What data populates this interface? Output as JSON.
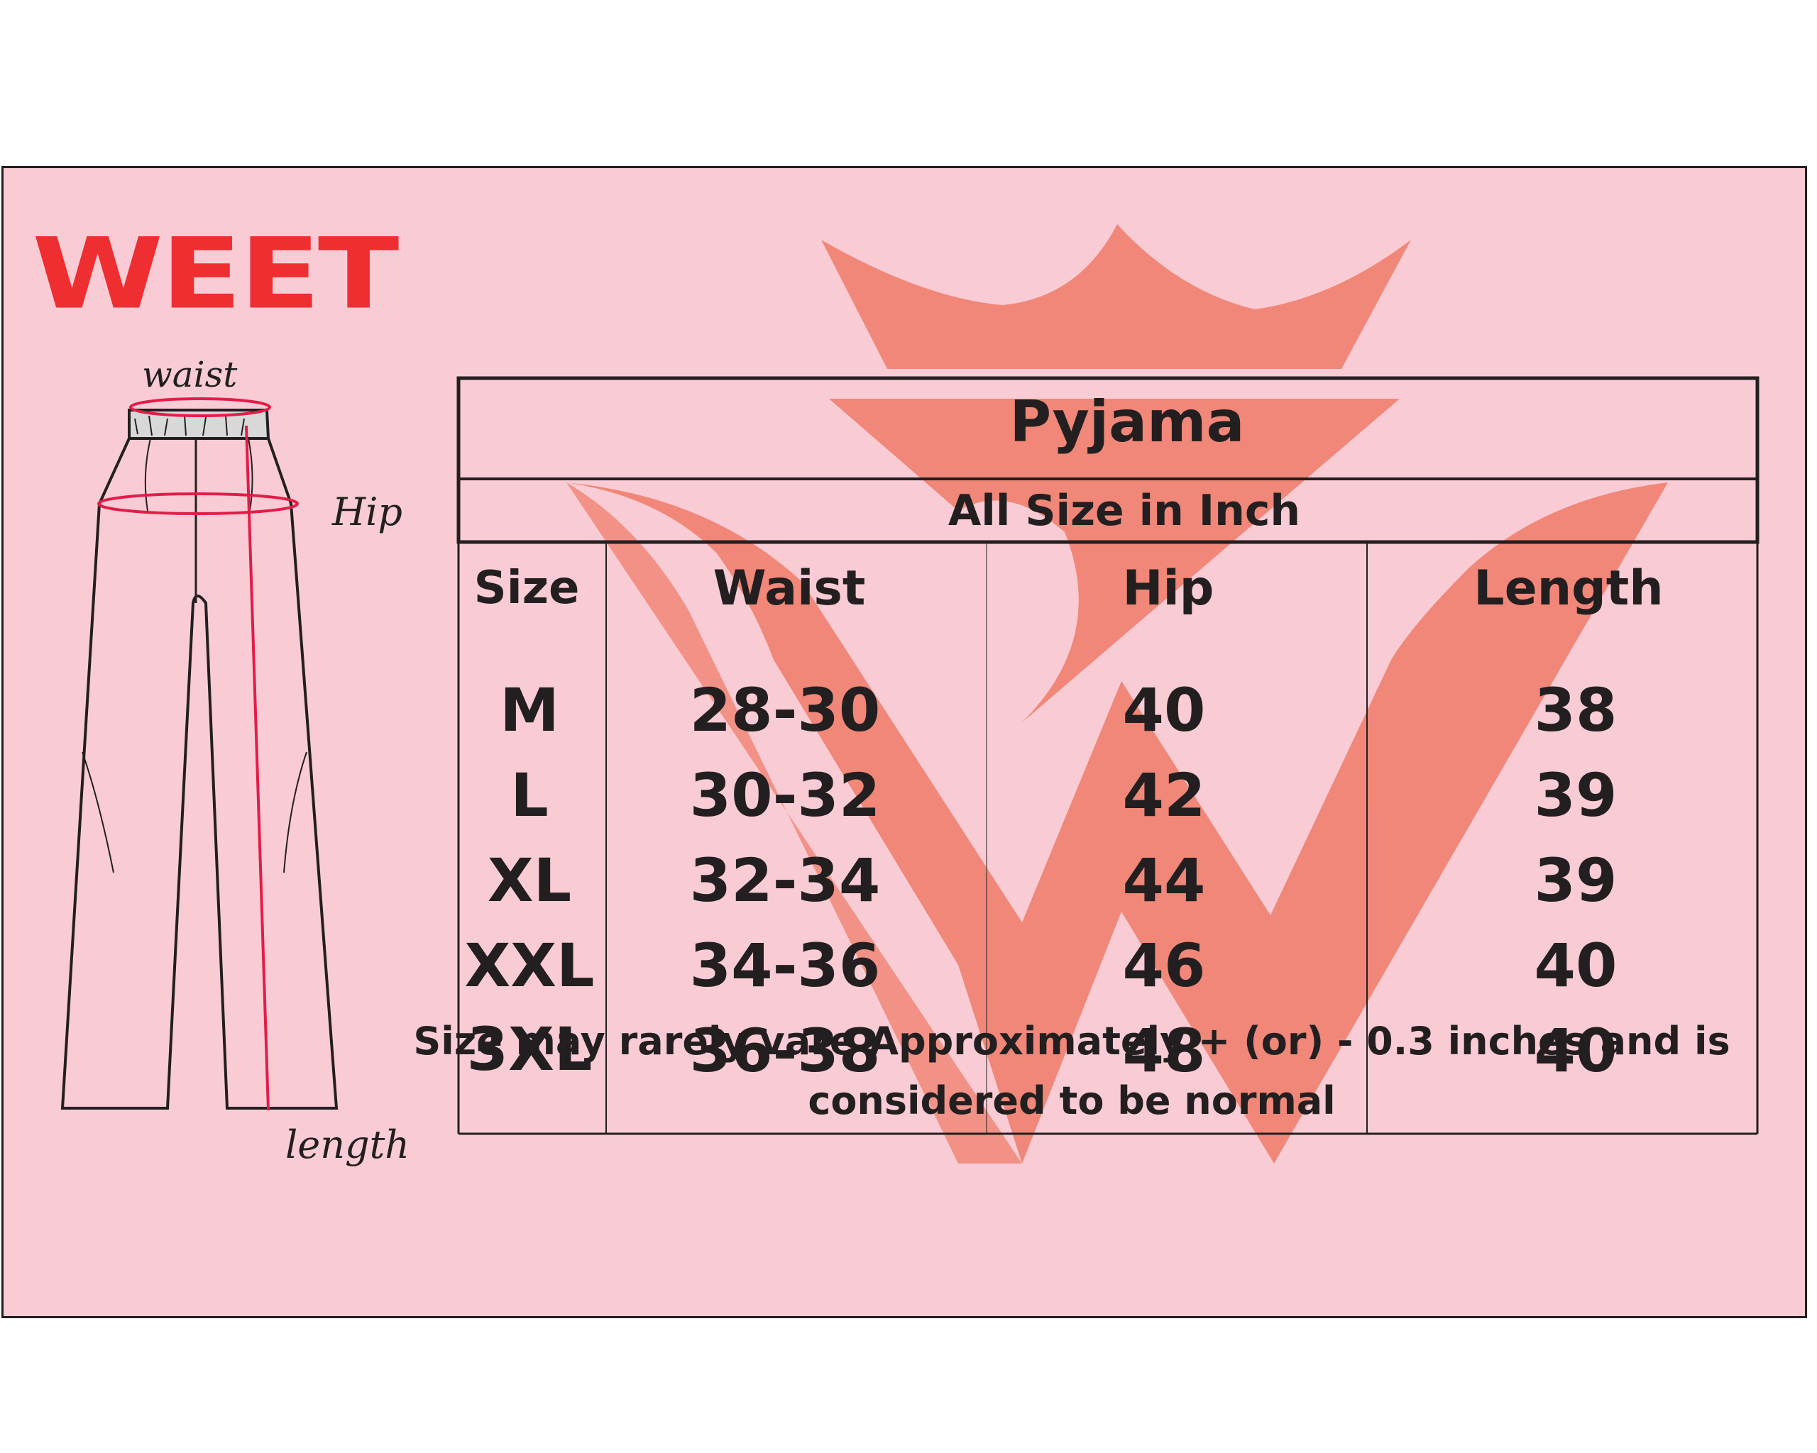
{
  "brand": {
    "name": "WEET",
    "color": "#ee2e31"
  },
  "diagram": {
    "labels": {
      "waist": "waist",
      "hip": "Hip",
      "length": "length"
    },
    "measure_color": "#e11d48"
  },
  "table": {
    "title": "Pyjama",
    "subtitle": "All Size in Inch",
    "headers": [
      "Size",
      "Waist",
      "Hip",
      "Length"
    ],
    "rows": [
      [
        "M",
        "28-30",
        "40",
        "38"
      ],
      [
        "L",
        "30-32",
        "42",
        "39"
      ],
      [
        "XL",
        "32-34",
        "44",
        "39"
      ],
      [
        "XXL",
        "34-36",
        "46",
        "40"
      ],
      [
        "3XL",
        "36-38",
        "48",
        "40"
      ]
    ]
  },
  "watermark": {
    "color": "#f0806f"
  },
  "background": "#f9ccd5",
  "note": {
    "line1": "Size may rarely vare  Approximately + (or) - 0.3 inches and is",
    "line2": "considered to be normal"
  }
}
